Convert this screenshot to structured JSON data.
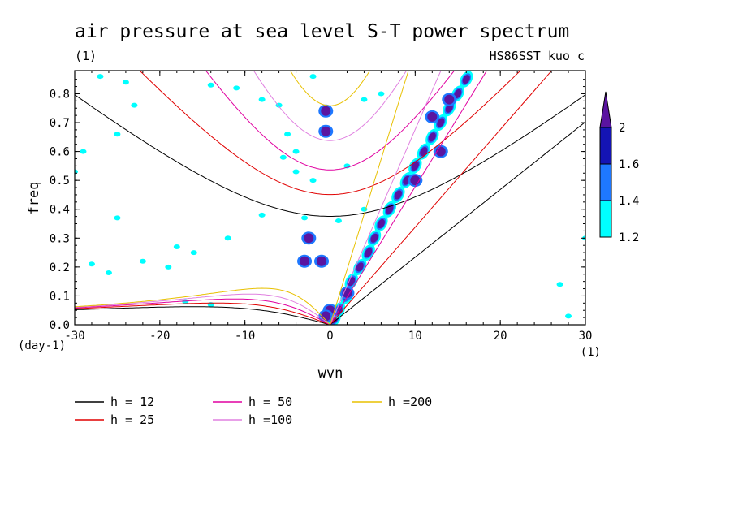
{
  "chart_data": {
    "type": "contour",
    "title": "air pressure at sea level S-T power spectrum",
    "subtitle_left": "(1)",
    "subtitle_right": "HS86SST_kuo_c",
    "xlabel": "wvn",
    "ylabel": "freq",
    "x_unit": "(1)",
    "y_unit": "(day-1)",
    "xlim": [
      -30,
      30
    ],
    "ylim": [
      0,
      0.88
    ],
    "xticks": [
      -30,
      -20,
      -10,
      0,
      10,
      20,
      30
    ],
    "xtick_labels": [
      "-30",
      "-20",
      "-10",
      "0",
      "10",
      "20",
      "30"
    ],
    "yticks": [
      0,
      0.1,
      0.2,
      0.3,
      0.4,
      0.5,
      0.6,
      0.7,
      0.8
    ],
    "ytick_labels": [
      "0.0",
      "0.1",
      "0.2",
      "0.3",
      "0.4",
      "0.5",
      "0.6",
      "0.7",
      "0.8"
    ],
    "colorbar": {
      "levels": [
        1.2,
        1.4,
        1.6,
        2
      ],
      "labels": [
        "1.2",
        "1.4",
        "1.6",
        "2"
      ],
      "colors": [
        "#00ffff",
        "#1e78ff",
        "#1414b4",
        "#5a14a0"
      ]
    },
    "series": [
      {
        "name": "h = 12",
        "h": 12,
        "color": "#000000"
      },
      {
        "name": "h = 25",
        "h": 25,
        "color": "#e00000"
      },
      {
        "name": "h = 50",
        "h": 50,
        "color": "#e000a0"
      },
      {
        "name": "h =100",
        "h": 100,
        "color": "#e080e0"
      },
      {
        "name": "h =200",
        "h": 200,
        "color": "#e8c000"
      }
    ],
    "spectral_features": {
      "kelvin_ridge": [
        [
          0.5,
          0.02
        ],
        [
          1,
          0.05
        ],
        [
          2,
          0.1
        ],
        [
          2.5,
          0.15
        ],
        [
          3.5,
          0.2
        ],
        [
          4.5,
          0.25
        ],
        [
          5.2,
          0.3
        ],
        [
          6,
          0.35
        ],
        [
          7,
          0.4
        ],
        [
          8,
          0.45
        ],
        [
          9,
          0.5
        ],
        [
          10,
          0.55
        ],
        [
          11,
          0.6
        ],
        [
          12,
          0.65
        ],
        [
          13,
          0.7
        ],
        [
          14,
          0.75
        ],
        [
          15,
          0.8
        ],
        [
          16,
          0.85
        ]
      ],
      "blobs": [
        [
          -0.5,
          0.74
        ],
        [
          -0.5,
          0.67
        ],
        [
          -3,
          0.22
        ],
        [
          -1,
          0.22
        ],
        [
          -2.5,
          0.3
        ],
        [
          2,
          0.11
        ],
        [
          0,
          0.05
        ],
        [
          -0.5,
          0.03
        ],
        [
          12,
          0.72
        ],
        [
          14,
          0.78
        ],
        [
          13,
          0.6
        ],
        [
          10,
          0.5
        ]
      ]
    }
  }
}
